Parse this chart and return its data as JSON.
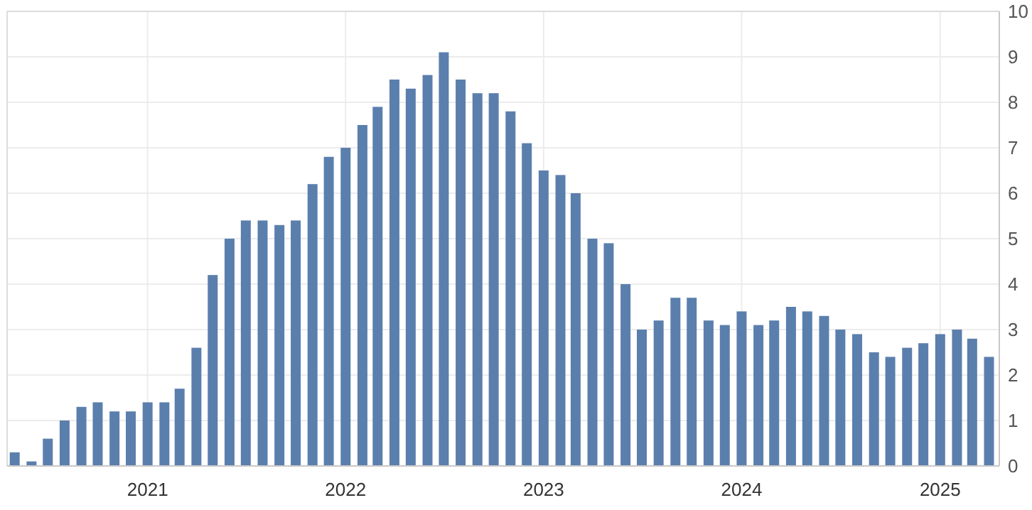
{
  "chart_data": {
    "type": "bar",
    "color": "#5b7fad",
    "grid": true,
    "x": [
      "2020-05",
      "2020-06",
      "2020-07",
      "2020-08",
      "2020-09",
      "2020-10",
      "2020-11",
      "2020-12",
      "2021-01",
      "2021-02",
      "2021-03",
      "2021-04",
      "2021-05",
      "2021-06",
      "2021-07",
      "2021-08",
      "2021-09",
      "2021-10",
      "2021-11",
      "2021-12",
      "2022-01",
      "2022-02",
      "2022-03",
      "2022-04",
      "2022-05",
      "2022-06",
      "2022-07",
      "2022-08",
      "2022-09",
      "2022-10",
      "2022-11",
      "2022-12",
      "2023-01",
      "2023-02",
      "2023-03",
      "2023-04",
      "2023-05",
      "2023-06",
      "2023-07",
      "2023-08",
      "2023-09",
      "2023-10",
      "2023-11",
      "2023-12",
      "2024-01",
      "2024-02",
      "2024-03",
      "2024-04",
      "2024-05",
      "2024-06",
      "2024-07",
      "2024-08",
      "2024-09",
      "2024-10",
      "2024-11",
      "2024-12",
      "2025-01",
      "2025-02",
      "2025-03",
      "2025-04"
    ],
    "values": [
      0.3,
      0.1,
      0.6,
      1.0,
      1.3,
      1.4,
      1.2,
      1.2,
      1.4,
      1.4,
      1.7,
      2.6,
      4.2,
      5.0,
      5.4,
      5.4,
      5.3,
      5.4,
      6.2,
      6.8,
      7.0,
      7.5,
      7.9,
      8.5,
      8.3,
      8.6,
      9.1,
      8.5,
      8.2,
      8.2,
      7.8,
      7.1,
      6.5,
      6.4,
      6.0,
      5.0,
      4.9,
      4.0,
      3.0,
      3.2,
      3.7,
      3.7,
      3.2,
      3.1,
      3.4,
      3.1,
      3.2,
      3.5,
      3.4,
      3.3,
      3.0,
      2.9,
      2.5,
      2.4,
      2.6,
      2.7,
      2.9,
      3.0,
      2.8,
      2.4
    ],
    "xlim": [
      "2020-04-17",
      "2025-04-20"
    ],
    "xticks": [
      "2021",
      "2022",
      "2023",
      "2024",
      "2025"
    ],
    "ylim": [
      0,
      10
    ],
    "yticks": [
      0,
      1,
      2,
      3,
      4,
      5,
      6,
      7,
      8,
      9,
      10
    ]
  }
}
